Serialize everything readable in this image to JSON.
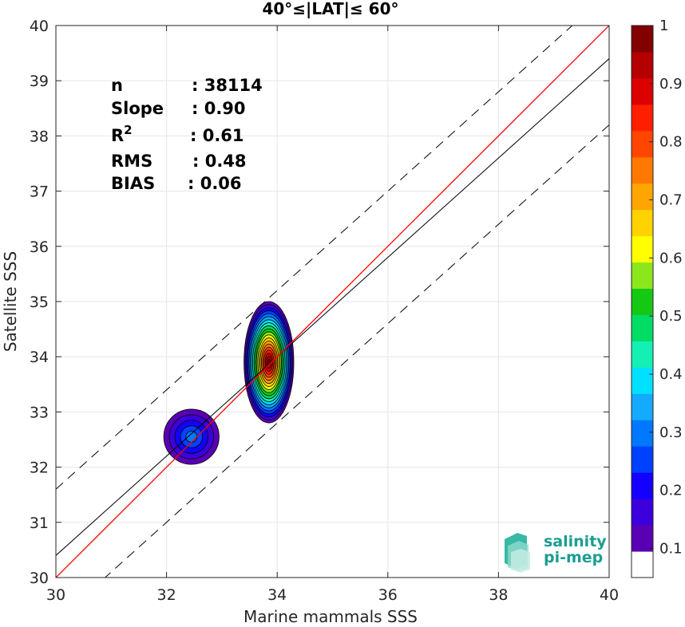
{
  "chart_data": {
    "type": "scatter",
    "title": "40°≤|LAT|≤ 60°",
    "xlabel": "Marine mammals SSS",
    "ylabel": "Satellite SSS",
    "xlim": [
      30,
      40
    ],
    "ylim": [
      30,
      40
    ],
    "xticks": [
      30,
      32,
      34,
      36,
      38,
      40
    ],
    "yticks": [
      30,
      31,
      32,
      33,
      34,
      35,
      36,
      37,
      38,
      39,
      40
    ],
    "grid": true,
    "stats": [
      {
        "label": "n",
        "value": ": 38114"
      },
      {
        "label": "Slope",
        "value": ": 0.90"
      },
      {
        "label": "R",
        "sup": "2",
        "value": ": 0.61"
      },
      {
        "label": "RMS",
        "value": ": 0.48"
      },
      {
        "label": "BIAS",
        "value": ": 0.06"
      }
    ],
    "lines": {
      "one_to_one": {
        "slope": 1.0,
        "intercept": 0.0,
        "color": "#ff0000"
      },
      "regression": {
        "slope": 0.9,
        "intercept": 3.4,
        "color": "#000000"
      },
      "bounds": [
        {
          "slope": 0.9,
          "intercept": 4.6,
          "style": "dashed"
        },
        {
          "slope": 0.9,
          "intercept": 2.2,
          "style": "dashed"
        }
      ]
    },
    "density_clusters": [
      {
        "cx": 33.85,
        "cy": 33.9,
        "rx": 0.45,
        "ry": 1.1,
        "peak": 1.0
      },
      {
        "cx": 32.45,
        "cy": 32.55,
        "rx": 0.5,
        "ry": 0.5,
        "peak": 0.25
      }
    ],
    "colorbar": {
      "ticks": [
        "0.1",
        "0.2",
        "0.3",
        "0.4",
        "0.5",
        "0.6",
        "0.7",
        "0.8",
        "0.9",
        "1"
      ],
      "colors": [
        "#ffffff",
        "#5a00b4",
        "#3c00dc",
        "#1400ff",
        "#0040ff",
        "#0078ff",
        "#14aaff",
        "#00e1ff",
        "#14f0b4",
        "#00dc64",
        "#14c814",
        "#8ce61e",
        "#ffff00",
        "#ffd200",
        "#ffa500",
        "#ff7800",
        "#ff4600",
        "#ff1e00",
        "#dc0000",
        "#b40000",
        "#820000"
      ]
    }
  },
  "logo": {
    "line1": "salinity",
    "line2": "pi-mep"
  }
}
